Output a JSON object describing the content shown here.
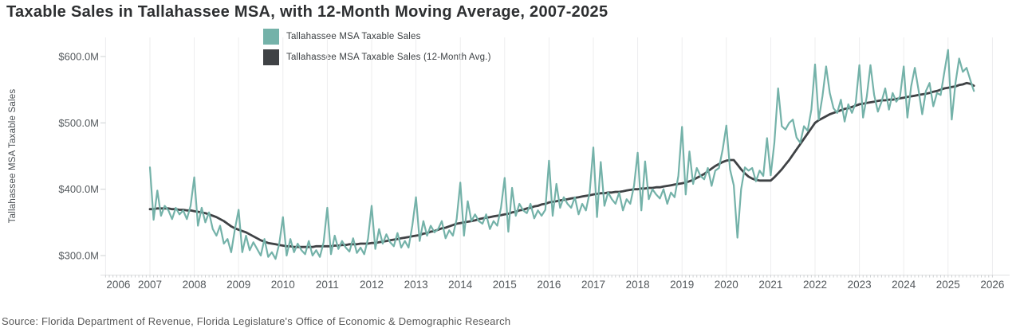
{
  "title": "Taxable Sales in Tallahassee MSA, with 12-Month Moving Average, 2007-2025",
  "legend": {
    "sales_label": "Tallahassee MSA Taxable Sales",
    "avg_label": "Tallahassee MSA Taxable Sales (12-Month Avg.)"
  },
  "y_axis": {
    "title": "Tallahassee MSA Taxable Sales",
    "tick_labels": [
      "$300.0M",
      "$400.0M",
      "$500.0M",
      "$600.0M"
    ],
    "tick_values": [
      300,
      400,
      500,
      600
    ]
  },
  "x_axis": {
    "year_labels": [
      "2006",
      "2007",
      "2008",
      "2009",
      "2010",
      "2011",
      "2012",
      "2013",
      "2014",
      "2015",
      "2016",
      "2017",
      "2018",
      "2019",
      "2020",
      "2021",
      "2022",
      "2023",
      "2024",
      "2025",
      "2026"
    ]
  },
  "source": "Source: Florida Department of Revenue, Florida Legislature's Office of Economic & Demographic Research",
  "colors": {
    "sales": "#74b2a9",
    "avg": "#3f4245",
    "gridline": "#ededee",
    "axis_line": "#e0e1e2",
    "tick": "#cdd0d2",
    "tick_label": "#54595d",
    "title_text": "#2d2f31"
  },
  "chart_data": {
    "type": "line",
    "title": "Taxable Sales in Tallahassee MSA, with 12-Month Moving Average, 2007-2025",
    "xlabel": "",
    "ylabel": "Tallahassee MSA Taxable Sales",
    "unit": "USD millions",
    "frequency": "monthly",
    "x_start": {
      "year": 2007,
      "month": 1
    },
    "x_end": {
      "year": 2025,
      "month": 8
    },
    "xlim": [
      2006,
      2026
    ],
    "ylim": [
      270,
      630
    ],
    "grid": "vertical-year-gridlines-only",
    "legend_position": "top-center",
    "series": [
      {
        "name": "Tallahassee MSA Taxable Sales",
        "color": "#74b2a9",
        "values": [
          433,
          354,
          398,
          360,
          375,
          368,
          355,
          372,
          362,
          368,
          355,
          375,
          418,
          345,
          372,
          350,
          365,
          340,
          330,
          345,
          318,
          325,
          305,
          340,
          369,
          305,
          330,
          308,
          320,
          310,
          300,
          325,
          298,
          305,
          295,
          318,
          358,
          300,
          325,
          305,
          318,
          308,
          302,
          322,
          300,
          308,
          298,
          320,
          372,
          302,
          330,
          310,
          322,
          312,
          306,
          326,
          304,
          312,
          302,
          325,
          375,
          310,
          340,
          318,
          332,
          320,
          314,
          334,
          312,
          322,
          312,
          345,
          388,
          322,
          352,
          330,
          345,
          335,
          340,
          352,
          326,
          338,
          330,
          355,
          410,
          330,
          382,
          352,
          362,
          352,
          348,
          362,
          340,
          352,
          345,
          372,
          417,
          336,
          402,
          360,
          378,
          368,
          364,
          378,
          356,
          368,
          360,
          369,
          443,
          360,
          408,
          372,
          388,
          378,
          372,
          388,
          362,
          378,
          368,
          395,
          463,
          358,
          441,
          375,
          395,
          385,
          378,
          395,
          368,
          385,
          378,
          405,
          455,
          368,
          442,
          385,
          400,
          392,
          386,
          400,
          378,
          395,
          388,
          420,
          494,
          392,
          457,
          408,
          432,
          420,
          415,
          432,
          405,
          428,
          432,
          460,
          496,
          430,
          406,
          327,
          400,
          433,
          428,
          432,
          412,
          428,
          420,
          477,
          421,
          470,
          552,
          495,
          490,
          500,
          505,
          478,
          470,
          495,
          488,
          520,
          588,
          505,
          540,
          585,
          545,
          522,
          515,
          535,
          502,
          528,
          515,
          530,
          587,
          508,
          540,
          587,
          542,
          517,
          532,
          552,
          520,
          545,
          532,
          540,
          585,
          508,
          555,
          583,
          550,
          513,
          548,
          560,
          525,
          545,
          542,
          577,
          610,
          505,
          560,
          597,
          577,
          583,
          565,
          548
        ]
      },
      {
        "name": "Tallahassee MSA Taxable Sales (12-Month Avg.)",
        "color": "#3f4245",
        "values": [
          370,
          370,
          371,
          371,
          371,
          371,
          370,
          370,
          369,
          369,
          368,
          368,
          367,
          366,
          365,
          364,
          362,
          360,
          358,
          355,
          352,
          348,
          344,
          341,
          339,
          337,
          335,
          332,
          329,
          326,
          323,
          321,
          319,
          318,
          317,
          316,
          315,
          314,
          314,
          313,
          313,
          313,
          313,
          313,
          313,
          314,
          314,
          314,
          314,
          314,
          315,
          315,
          316,
          316,
          317,
          317,
          317,
          318,
          318,
          318,
          319,
          319,
          320,
          321,
          322,
          323,
          324,
          325,
          326,
          327,
          328,
          329,
          330,
          331,
          333,
          334,
          336,
          337,
          339,
          341,
          342,
          344,
          346,
          348,
          349,
          350,
          351,
          352,
          353,
          355,
          356,
          357,
          358,
          359,
          360,
          361,
          362,
          363,
          365,
          366,
          368,
          369,
          371,
          372,
          374,
          375,
          377,
          378,
          380,
          381,
          382,
          383,
          384,
          385,
          386,
          387,
          388,
          389,
          390,
          391,
          392,
          393,
          394,
          394,
          395,
          395,
          396,
          396,
          397,
          398,
          399,
          400,
          400,
          401,
          401,
          402,
          402,
          403,
          403,
          404,
          405,
          406,
          407,
          408,
          409,
          410,
          412,
          414,
          417,
          420,
          423,
          427,
          431,
          435,
          438,
          441,
          443,
          444,
          444,
          437,
          430,
          424,
          419,
          416,
          414,
          413,
          413,
          413,
          413,
          418,
          424,
          430,
          437,
          444,
          452,
          460,
          468,
          476,
          484,
          492,
          500,
          504,
          507,
          510,
          513,
          515,
          517,
          519,
          521,
          522,
          524,
          526,
          528,
          529,
          530,
          531,
          532,
          533,
          534,
          534,
          535,
          535,
          536,
          537,
          538,
          539,
          540,
          541,
          542,
          543,
          544,
          545,
          547,
          548,
          550,
          552,
          553,
          554,
          555,
          557,
          558,
          560,
          559,
          556
        ]
      }
    ]
  }
}
